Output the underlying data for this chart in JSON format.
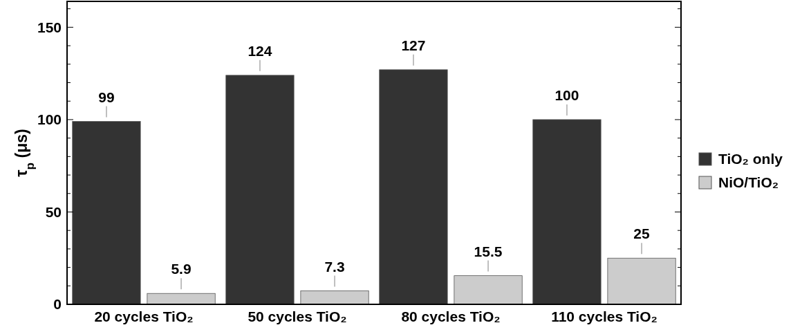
{
  "chart_data": {
    "type": "bar",
    "ylabel": "τ$_{p}$ (μs)",
    "categories": [
      "20 cycles TiO₂",
      "50 cycles TiO₂",
      "80 cycles TiO₂",
      "110 cycles TiO₂"
    ],
    "series": [
      {
        "name": "TiO₂ only",
        "color": "#333333",
        "values": [
          99,
          124,
          127,
          100
        ]
      },
      {
        "name": "NiO/TiO₂",
        "color": "#cccccc",
        "values": [
          5.9,
          7.3,
          15.5,
          25
        ]
      }
    ],
    "ylim": [
      0,
      164
    ],
    "yticks": [
      0,
      {
        "value": 10,
        "label": null
      },
      {
        "value": 20,
        "label": null
      },
      {
        "value": 30,
        "label": null
      },
      {
        "value": 40,
        "label": null
      },
      50,
      {
        "value": 60,
        "label": null
      },
      {
        "value": 70,
        "label": null
      },
      {
        "value": 80,
        "label": null
      },
      {
        "value": 90,
        "label": null
      },
      100,
      {
        "value": 110,
        "label": null
      },
      {
        "value": 120,
        "label": null
      },
      {
        "value": 130,
        "label": null
      },
      {
        "value": 140,
        "label": null
      },
      150,
      {
        "value": 160,
        "label": null
      }
    ],
    "data_labels": true,
    "legend": "right",
    "grid": false
  }
}
